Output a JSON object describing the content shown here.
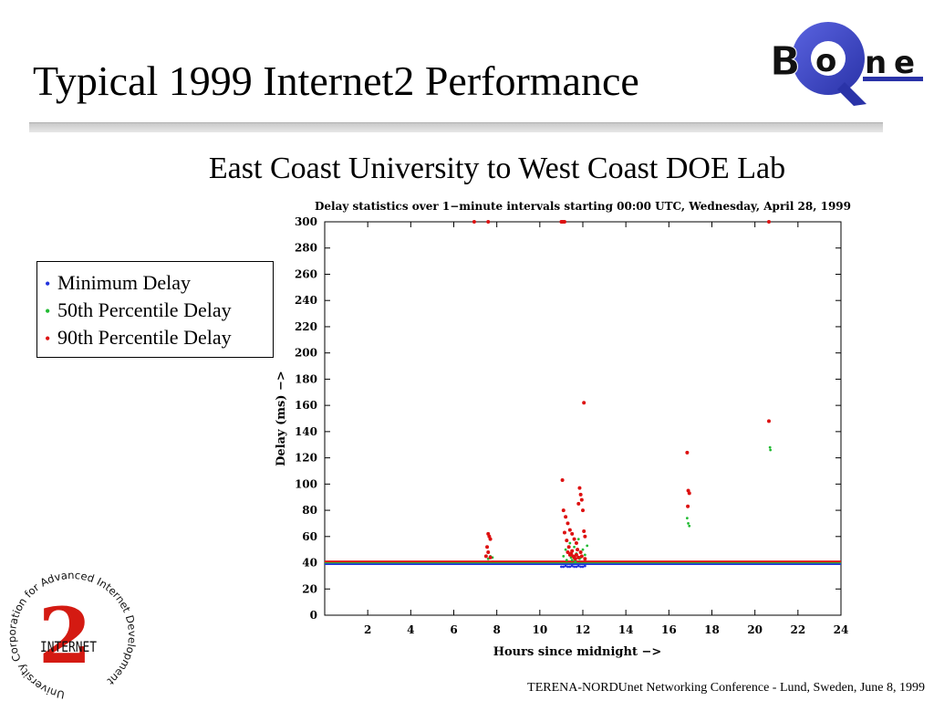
{
  "slide": {
    "title": "Typical 1999 Internet2 Performance",
    "subtitle": "East Coast University to West Coast DOE Lab",
    "footer": "TERENA-NORDUnet Networking Conference - Lund, Sweden, June 8, 1999"
  },
  "logos": {
    "qbone": {
      "letters": [
        "B",
        "o",
        "n",
        "e"
      ],
      "q_color": "#3b44c8",
      "letter_color": "#111111"
    },
    "internet2": {
      "ring_text": "University Corporation for Advanced Internet Development",
      "mark_text": "INTERNET",
      "numeral": "2",
      "numeral_color": "#d41a12"
    }
  },
  "legend": {
    "items": [
      {
        "label": "Minimum Delay",
        "color": "#2233dd",
        "bullet": "•"
      },
      {
        "label": "50th Percentile Delay",
        "color": "#22bb33",
        "bullet": "•"
      },
      {
        "label": "90th Percentile Delay",
        "color": "#dd1111",
        "bullet": "•"
      }
    ]
  },
  "chart_data": {
    "type": "scatter",
    "title": "Delay statistics over 1−minute intervals starting 00:00 UTC, Wednesday, April 28, 1999",
    "xlabel": "Hours since midnight −>",
    "ylabel": "Delay (ms) −>",
    "xlim": [
      0,
      24
    ],
    "ylim": [
      0,
      300
    ],
    "xticks": [
      2,
      4,
      6,
      8,
      10,
      12,
      14,
      16,
      18,
      20,
      22,
      24
    ],
    "yticks": [
      0,
      20,
      40,
      60,
      80,
      100,
      120,
      140,
      160,
      180,
      200,
      220,
      240,
      260,
      280,
      300
    ],
    "grid": false,
    "baseline": {
      "min_delay": 39,
      "p50_delay": 40,
      "p90_delay": 41,
      "x_range": [
        0,
        24
      ]
    },
    "series": [
      {
        "name": "Minimum Delay",
        "color": "#2233dd",
        "points": [
          [
            11.0,
            37
          ],
          [
            11.1,
            37
          ],
          [
            11.2,
            37.5
          ],
          [
            11.3,
            37
          ],
          [
            11.4,
            37
          ],
          [
            11.5,
            37.5
          ],
          [
            11.6,
            37
          ],
          [
            11.7,
            37
          ],
          [
            11.8,
            37.5
          ],
          [
            11.9,
            37
          ],
          [
            12.0,
            37
          ],
          [
            12.1,
            37.5
          ]
        ]
      },
      {
        "name": "50th Percentile Delay",
        "color": "#22bb33",
        "points": [
          [
            7.6,
            43
          ],
          [
            7.7,
            45
          ],
          [
            7.8,
            44
          ],
          [
            11.1,
            45
          ],
          [
            11.2,
            50
          ],
          [
            11.3,
            48
          ],
          [
            11.4,
            55
          ],
          [
            11.5,
            42
          ],
          [
            11.6,
            52
          ],
          [
            11.7,
            47
          ],
          [
            11.8,
            58
          ],
          [
            11.9,
            44
          ],
          [
            12.0,
            50
          ],
          [
            12.1,
            46
          ],
          [
            12.2,
            53
          ],
          [
            11.25,
            42
          ],
          [
            11.45,
            44
          ],
          [
            11.65,
            41
          ],
          [
            11.85,
            43
          ],
          [
            16.85,
            74
          ],
          [
            16.9,
            70
          ],
          [
            16.95,
            68
          ],
          [
            20.7,
            128
          ],
          [
            20.72,
            126
          ]
        ]
      },
      {
        "name": "90th Percentile Delay",
        "color": "#dd1111",
        "points": [
          [
            6.95,
            300
          ],
          [
            7.6,
            300
          ],
          [
            11.0,
            300
          ],
          [
            11.05,
            300
          ],
          [
            11.1,
            300
          ],
          [
            11.15,
            300
          ],
          [
            20.65,
            300
          ],
          [
            12.05,
            162
          ],
          [
            11.05,
            103
          ],
          [
            11.85,
            97
          ],
          [
            11.9,
            92
          ],
          [
            11.95,
            88
          ],
          [
            11.8,
            85
          ],
          [
            12.0,
            80
          ],
          [
            11.1,
            80
          ],
          [
            11.2,
            75
          ],
          [
            11.3,
            70
          ],
          [
            11.4,
            65
          ],
          [
            11.5,
            62
          ],
          [
            11.6,
            58
          ],
          [
            11.7,
            55
          ],
          [
            11.75,
            50
          ],
          [
            11.9,
            48
          ],
          [
            12.05,
            64
          ],
          [
            12.1,
            60
          ],
          [
            11.15,
            63
          ],
          [
            11.25,
            57
          ],
          [
            11.35,
            52
          ],
          [
            11.45,
            47
          ],
          [
            11.55,
            45
          ],
          [
            11.65,
            43
          ],
          [
            11.3,
            48
          ],
          [
            11.4,
            46
          ],
          [
            11.5,
            49
          ],
          [
            11.6,
            44
          ],
          [
            11.7,
            46
          ],
          [
            11.8,
            44
          ],
          [
            11.95,
            45
          ],
          [
            12.1,
            43
          ],
          [
            7.6,
            62
          ],
          [
            7.65,
            60
          ],
          [
            7.7,
            58
          ],
          [
            7.55,
            52
          ],
          [
            7.6,
            48
          ],
          [
            7.5,
            45
          ],
          [
            7.7,
            44
          ],
          [
            16.85,
            124
          ],
          [
            16.9,
            95
          ],
          [
            16.95,
            93
          ],
          [
            16.88,
            83
          ],
          [
            20.65,
            148
          ]
        ]
      }
    ]
  }
}
